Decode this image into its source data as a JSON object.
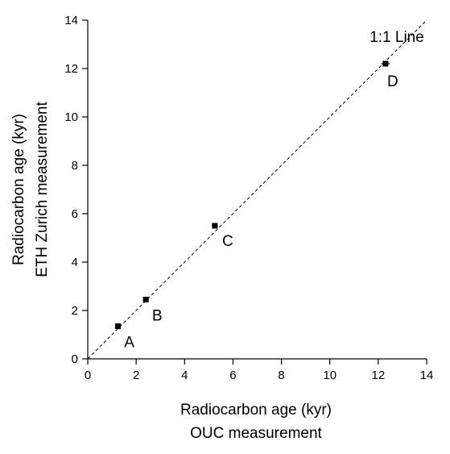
{
  "chart_data": {
    "type": "scatter",
    "title": "",
    "xlabel": [
      "Radiocarbon age (kyr)",
      "OUC measurement"
    ],
    "ylabel": [
      "Radiocarbon age (kyr)",
      "ETH Zurich measurement"
    ],
    "xlim": [
      0,
      14
    ],
    "ylim": [
      0,
      14
    ],
    "xticks": [
      0,
      2,
      4,
      6,
      8,
      10,
      12,
      14
    ],
    "yticks": [
      0,
      2,
      4,
      6,
      8,
      10,
      12,
      14
    ],
    "grid": false,
    "points": [
      {
        "label": "A",
        "x": 1.25,
        "y": 1.35,
        "xerr": 0.1,
        "yerr": 0.08
      },
      {
        "label": "B",
        "x": 2.4,
        "y": 2.45,
        "xerr": 0.1,
        "yerr": 0.08
      },
      {
        "label": "C",
        "x": 5.25,
        "y": 5.5,
        "xerr": 0.12,
        "yerr": 0.1
      },
      {
        "label": "D",
        "x": 12.3,
        "y": 12.2,
        "xerr": 0.18,
        "yerr": 0.12
      }
    ],
    "reference_line": {
      "label": "1:1 Line",
      "from": [
        0,
        0
      ],
      "to": [
        14,
        14
      ],
      "style": "dashed"
    }
  }
}
